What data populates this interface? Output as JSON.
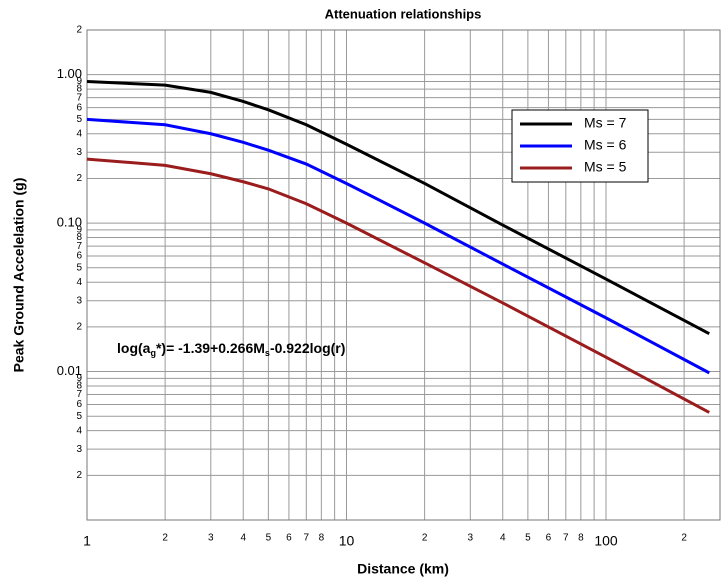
{
  "chart_data": {
    "type": "line",
    "title": "Attenuation relationships",
    "x_label": "Distance  (km)",
    "y_label": "Peak Ground Accelelation  (g)",
    "annotation_parts": [
      "log(a",
      "g",
      "*)= -1.39+0.266M",
      "s",
      "-0.922log(r)"
    ],
    "log_x": true,
    "log_y": true,
    "grid": true,
    "legend": "upper right",
    "xlim": [
      1,
      275
    ],
    "ylim": [
      0.001,
      2
    ],
    "xticks": [
      1,
      2,
      3,
      4,
      5,
      6,
      7,
      8,
      10,
      {
        "value": 20,
        "label": "2"
      },
      {
        "value": 30,
        "label": "3"
      },
      {
        "value": 40,
        "label": "4"
      },
      {
        "value": 50,
        "label": "5"
      },
      {
        "value": 60,
        "label": "6"
      },
      {
        "value": 70,
        "label": "7"
      },
      {
        "value": 80,
        "label": "8"
      },
      100,
      {
        "value": 200,
        "label": "2"
      }
    ],
    "x_minor_ticks": [
      9,
      90
    ],
    "yticks": [
      2,
      {
        "value": 1,
        "label": "1.00"
      },
      {
        "value": 0.9,
        "label": "9"
      },
      {
        "value": 0.8,
        "label": "8"
      },
      {
        "value": 0.7,
        "label": "7"
      },
      {
        "value": 0.6,
        "label": "6"
      },
      {
        "value": 0.5,
        "label": "5"
      },
      {
        "value": 0.4,
        "label": "4"
      },
      {
        "value": 0.3,
        "label": "3"
      },
      {
        "value": 0.2,
        "label": "2"
      },
      {
        "value": 0.1,
        "label": "0.10"
      },
      {
        "value": 0.09,
        "label": "9"
      },
      {
        "value": 0.08,
        "label": "8"
      },
      {
        "value": 0.07,
        "label": "7"
      },
      {
        "value": 0.06,
        "label": "6"
      },
      {
        "value": 0.05,
        "label": "5"
      },
      {
        "value": 0.04,
        "label": "4"
      },
      {
        "value": 0.03,
        "label": "3"
      },
      {
        "value": 0.02,
        "label": "2"
      },
      {
        "value": 0.01,
        "label": "0.01"
      },
      {
        "value": 0.009,
        "label": "9"
      },
      {
        "value": 0.008,
        "label": "8"
      },
      {
        "value": 0.007,
        "label": "7"
      },
      {
        "value": 0.006,
        "label": "6"
      },
      {
        "value": 0.005,
        "label": "5"
      },
      {
        "value": 0.004,
        "label": "4"
      },
      {
        "value": 0.003,
        "label": "3"
      },
      {
        "value": 0.002,
        "label": "2"
      }
    ],
    "x": [
      1,
      2,
      3,
      4,
      5,
      7,
      10,
      20,
      40,
      100,
      250
    ],
    "series": [
      {
        "name": "Ms = 7",
        "color": "#000000",
        "values": [
          0.9,
          0.85,
          0.76,
          0.66,
          0.58,
          0.46,
          0.34,
          0.185,
          0.097,
          0.042,
          0.018
        ]
      },
      {
        "name": "Ms = 6",
        "color": "#0000ff",
        "values": [
          0.5,
          0.46,
          0.4,
          0.35,
          0.31,
          0.25,
          0.185,
          0.1,
          0.053,
          0.023,
          0.0098
        ]
      },
      {
        "name": "Ms = 5",
        "color": "#9b1c1c",
        "values": [
          0.27,
          0.245,
          0.215,
          0.19,
          0.17,
          0.135,
          0.1,
          0.054,
          0.029,
          0.0125,
          0.0053
        ]
      }
    ]
  }
}
